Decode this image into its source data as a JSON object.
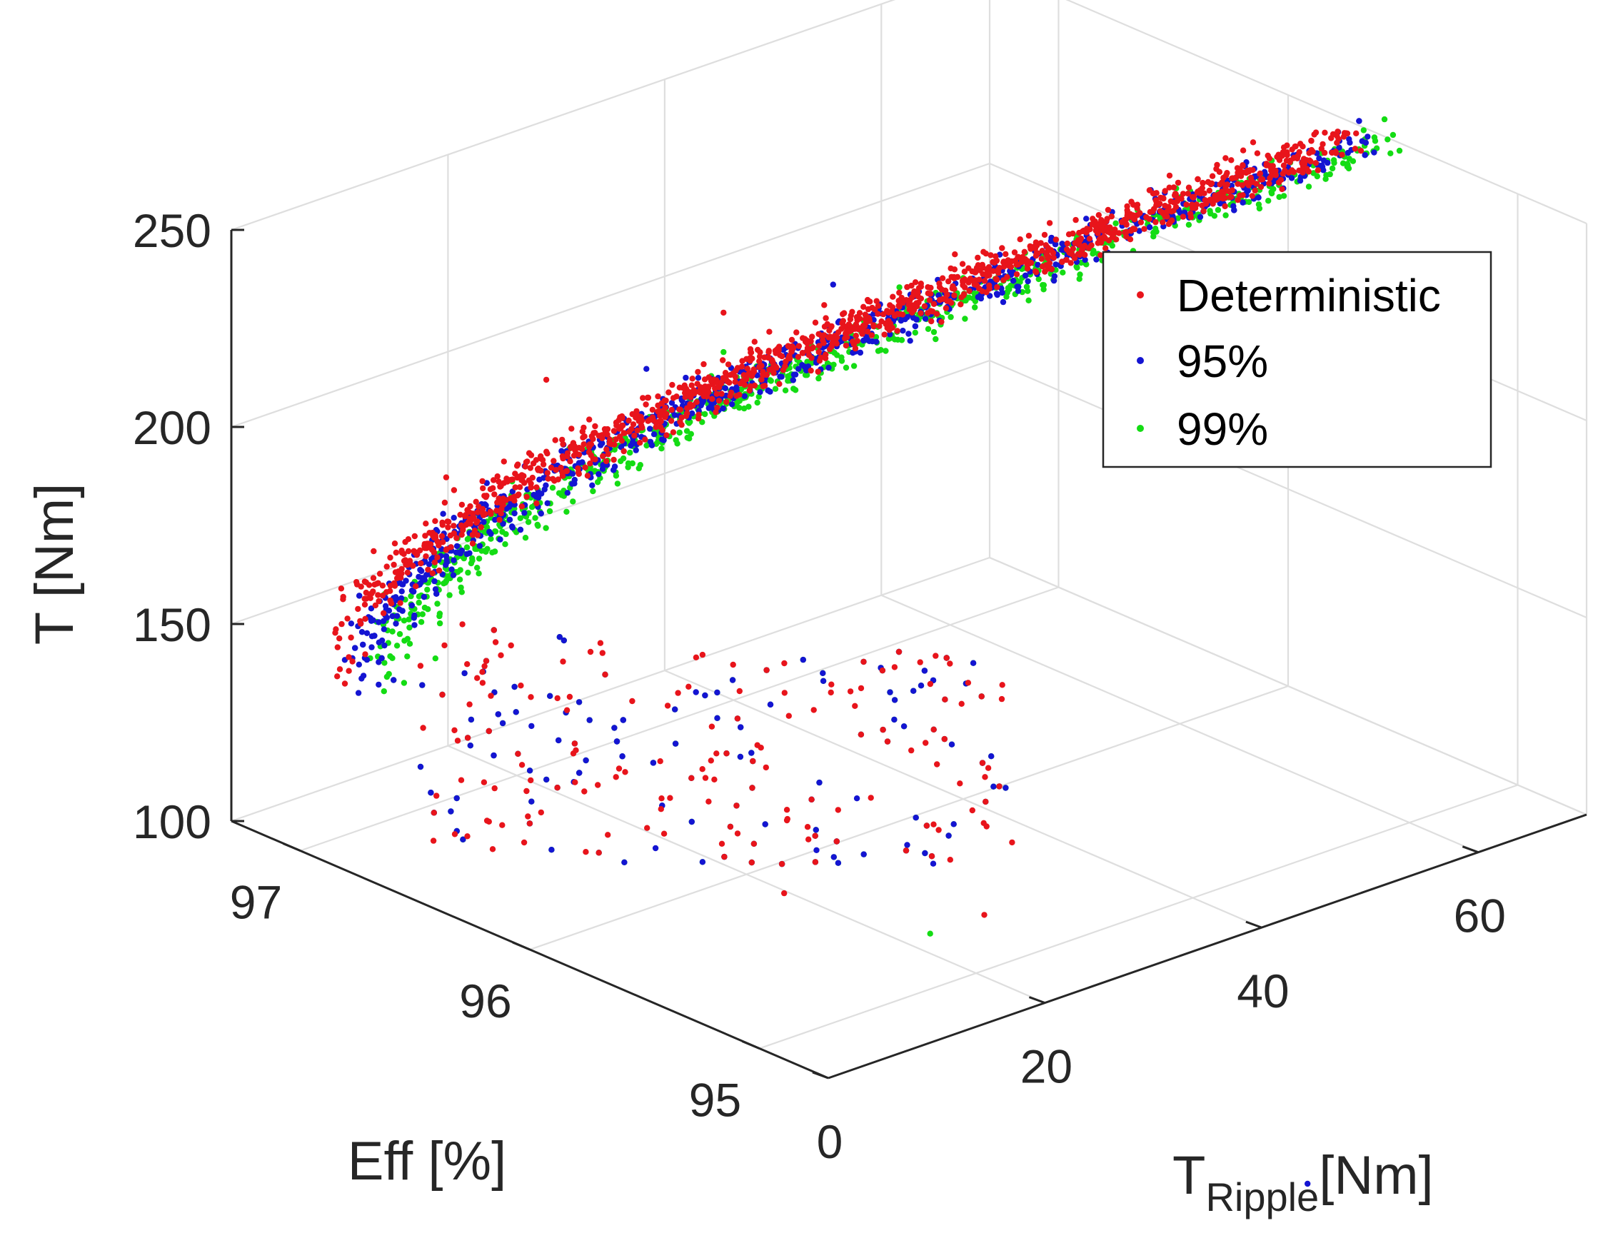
{
  "chart_data": {
    "type": "scatter3d",
    "title": "",
    "axes": {
      "x": {
        "label_main": "T",
        "label_sub": "Ripple",
        "label_tail": "[Nm]",
        "range": [
          0,
          70
        ],
        "ticks": [
          0,
          20,
          40,
          60
        ],
        "tick_labels": [
          "0",
          "20",
          "40",
          "60"
        ]
      },
      "y": {
        "label": "Eff [%]",
        "range": [
          94.7,
          97.3
        ],
        "ticks": [
          95,
          96,
          97
        ],
        "tick_labels": [
          "95",
          "96",
          "97"
        ]
      },
      "z": {
        "label": "T [Nm]",
        "range": [
          100,
          250
        ],
        "ticks": [
          100,
          150,
          200,
          250
        ],
        "tick_labels": [
          "100",
          "150",
          "200",
          "250"
        ]
      }
    },
    "grid": true,
    "legend": {
      "position": "top-right",
      "entries": [
        "Deterministic",
        "95%",
        "99%"
      ]
    },
    "series": [
      {
        "name": "Deterministic",
        "color": "#e8141b",
        "key_points": [
          [
            2,
            96.9,
            143
          ],
          [
            3,
            96.7,
            175
          ],
          [
            5,
            96.6,
            200
          ],
          [
            10,
            96.4,
            225
          ],
          [
            20,
            96.1,
            240
          ],
          [
            35,
            95.8,
            248
          ],
          [
            50,
            95.6,
            253
          ],
          [
            58,
            95.5,
            256
          ],
          [
            15,
            95.6,
            110
          ],
          [
            25,
            95.2,
            105
          ]
        ],
        "count": 1400
      },
      {
        "name": "95%",
        "color": "#1414d2",
        "key_points": [
          [
            3,
            96.8,
            150
          ],
          [
            5,
            96.6,
            180
          ],
          [
            8,
            96.4,
            205
          ],
          [
            15,
            96.2,
            228
          ],
          [
            28,
            96.0,
            242
          ],
          [
            45,
            95.7,
            250
          ],
          [
            58,
            95.5,
            254
          ],
          [
            40,
            94.5,
            40
          ],
          [
            20,
            95.3,
            125
          ]
        ],
        "count": 1100
      },
      {
        "name": "99%",
        "color": "#14dc14",
        "key_points": [
          [
            4,
            96.6,
            155
          ],
          [
            7,
            96.5,
            185
          ],
          [
            10,
            96.3,
            210
          ],
          [
            20,
            96.1,
            230
          ],
          [
            32,
            95.9,
            240
          ],
          [
            50,
            95.6,
            248
          ],
          [
            62,
            95.4,
            258
          ],
          [
            20,
            95.2,
            105
          ]
        ],
        "count": 900
      }
    ]
  }
}
